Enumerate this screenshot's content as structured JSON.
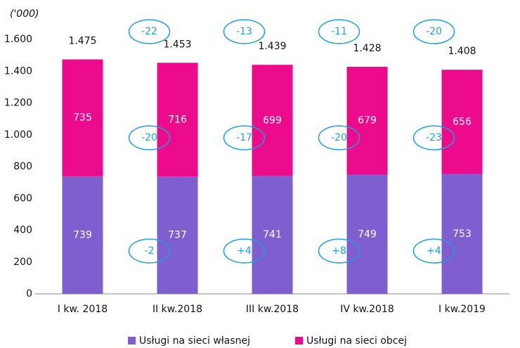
{
  "chart_data": {
    "type": "stacked_bar",
    "unit_label": "('000)",
    "categories": [
      "I kw. 2018",
      "II kw.2018",
      "III kw.2018",
      "IV kw.2018",
      "I kw.2019"
    ],
    "series": [
      {
        "name": "Usługi na sieci własnej",
        "color": "#7f5fd0",
        "values": [
          739,
          737,
          741,
          749,
          753
        ]
      },
      {
        "name": "Usługi na sieci obcej",
        "color": "#ec0b8c",
        "values": [
          735,
          716,
          699,
          679,
          656
        ]
      }
    ],
    "totals": {
      "values": [
        1475,
        1453,
        1439,
        1428,
        1408
      ],
      "value_labels": [
        "1.475",
        "1.453",
        "1.439",
        "1.428",
        "1.408"
      ]
    },
    "change_annotations": {
      "total": [
        "-22",
        "-13",
        "-11",
        "-20"
      ],
      "obcej": [
        "-20",
        "-17",
        "-20",
        "-23"
      ],
      "wlasnej": [
        "-2",
        "+4",
        "+8",
        "+4"
      ]
    },
    "ylim": [
      0,
      1600
    ],
    "yticks": [
      0,
      200,
      400,
      600,
      800,
      {
        "value": 1000,
        "label": "1.000"
      },
      {
        "value": 1200,
        "label": "1.200"
      },
      {
        "value": 1400,
        "label": "1.400"
      },
      {
        "value": 1600,
        "label": "1.600"
      }
    ],
    "grid": false,
    "legend": "bottom"
  }
}
